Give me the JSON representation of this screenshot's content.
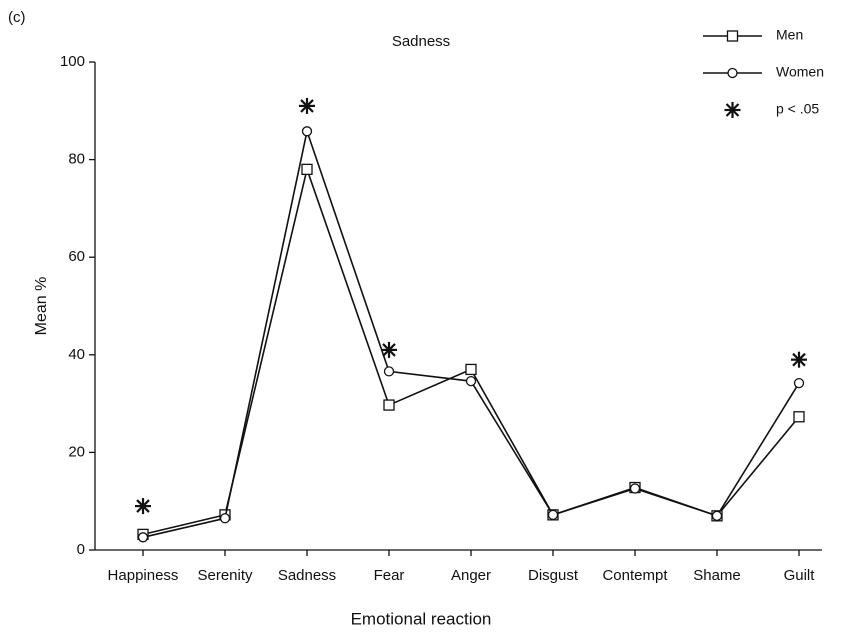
{
  "panel_label": "(c)",
  "chart_data": {
    "type": "line",
    "title": "Sadness",
    "x_label": "Emotional reaction",
    "y_label": "Mean %",
    "categories": [
      "Happiness",
      "Serenity",
      "Sadness",
      "Fear",
      "Anger",
      "Disgust",
      "Contempt",
      "Shame",
      "Guilt"
    ],
    "ylim": [
      0,
      100
    ],
    "yticks": [
      0,
      20,
      40,
      60,
      80,
      100
    ],
    "grid": false,
    "legend": "top-right",
    "series": [
      {
        "name": "Men",
        "color": "#111111",
        "marker": "square",
        "line": true,
        "values": [
          3.2,
          7.2,
          78,
          29.7,
          37,
          7.2,
          12.8,
          7,
          27.3
        ]
      },
      {
        "name": "Women",
        "color": "#111111",
        "marker": "circle",
        "line": true,
        "values": [
          2.6,
          6.5,
          85.8,
          36.6,
          34.6,
          7.2,
          12.6,
          7,
          34.2
        ]
      },
      {
        "name": "p < .05",
        "color": "#111111",
        "marker": "star",
        "line": false,
        "values": [
          9,
          null,
          91,
          41,
          null,
          null,
          null,
          null,
          39
        ]
      }
    ]
  }
}
